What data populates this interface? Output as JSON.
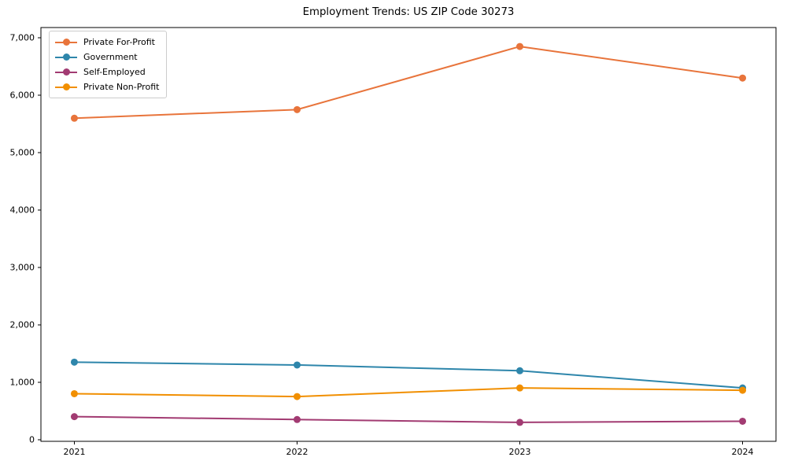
{
  "title": "Employment Trends: US ZIP Code 30273",
  "chart_data": {
    "type": "line",
    "title": "Employment Trends: US ZIP Code 30273",
    "xlabel": "",
    "ylabel": "",
    "grid": false,
    "legend_position": "upper left",
    "background_color": "#ffffff",
    "axis_color": "#000000",
    "x": [
      2021,
      2022,
      2023,
      2024
    ],
    "x_tick_labels": [
      "2021",
      "2022",
      "2023",
      "2024"
    ],
    "y_ticks": [
      0,
      1000,
      2000,
      3000,
      4000,
      5000,
      6000,
      7000
    ],
    "y_tick_labels": [
      "0",
      "1,000",
      "2,000",
      "3,000",
      "4,000",
      "5,000",
      "6,000",
      "7,000"
    ],
    "xlim": [
      2020.85,
      2024.15
    ],
    "ylim": [
      -30,
      7180
    ],
    "series": [
      {
        "name": "Private For-Profit",
        "color": "#E8743B",
        "values": [
          5600,
          5750,
          6850,
          6300
        ]
      },
      {
        "name": "Government",
        "color": "#2E86AB",
        "values": [
          1350,
          1300,
          1200,
          900
        ]
      },
      {
        "name": "Self-Employed",
        "color": "#A23B72",
        "values": [
          400,
          350,
          300,
          320
        ]
      },
      {
        "name": "Private Non-Profit",
        "color": "#F18F01",
        "values": [
          800,
          750,
          900,
          860
        ]
      }
    ]
  }
}
